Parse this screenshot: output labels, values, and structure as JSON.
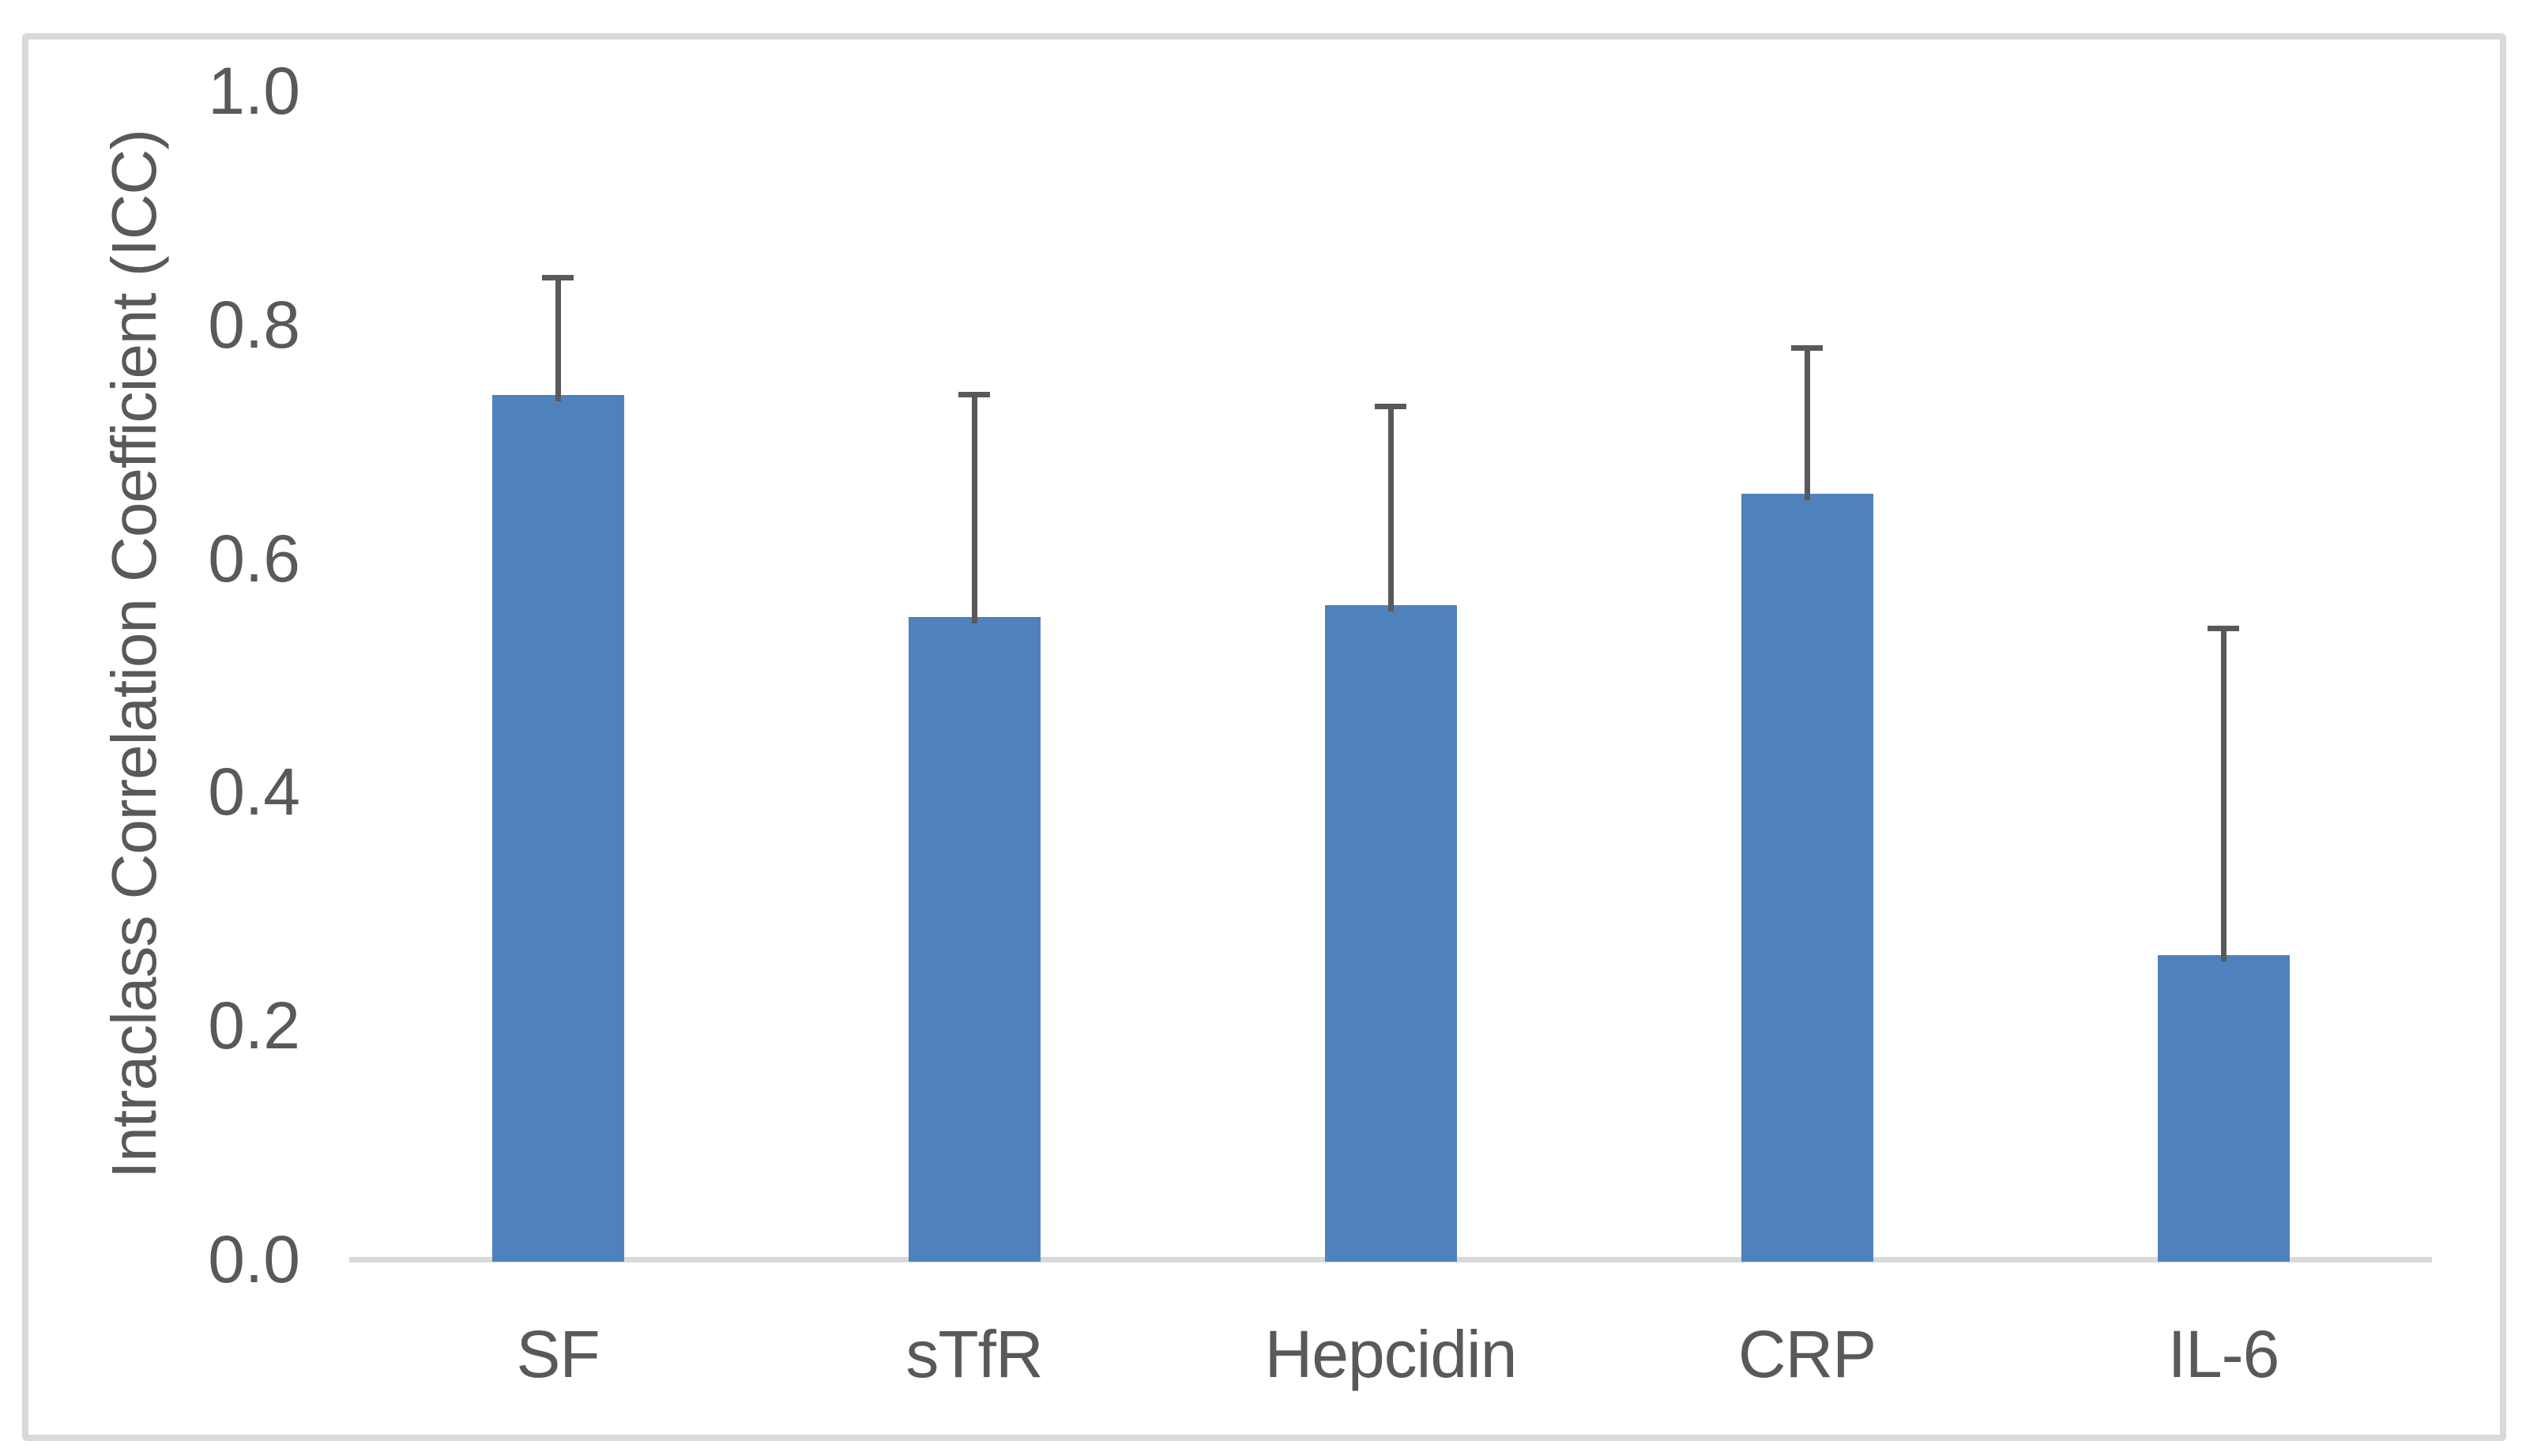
{
  "figure": {
    "y_axis_title": "Intraclass Correlation Coefficient (ICC)",
    "colors": {
      "bar": "#4F81BD",
      "error_bar": "#595959",
      "axis_text": "#595959",
      "baseline": "#D9D9D9",
      "border": "#D9D9D9",
      "background": "#FFFFFF"
    }
  },
  "chart_data": {
    "type": "bar",
    "title": "",
    "xlabel": "",
    "ylabel": "Intraclass Correlation Coefficient (ICC)",
    "categories": [
      "SF",
      "sTfR",
      "Hepcidin",
      "CRP",
      "IL-6"
    ],
    "series": [
      {
        "name": "ICC",
        "values": [
          0.74,
          0.55,
          0.56,
          0.655,
          0.26
        ],
        "error_upper_top": [
          0.84,
          0.74,
          0.73,
          0.78,
          0.54
        ]
      }
    ],
    "ylim": [
      0.0,
      1.0
    ],
    "ytick_labels": [
      "0.0",
      "0.2",
      "0.4",
      "0.6",
      "0.8",
      "1.0"
    ],
    "grid": false,
    "legend_position": "none",
    "error_bars": "upper-only"
  }
}
